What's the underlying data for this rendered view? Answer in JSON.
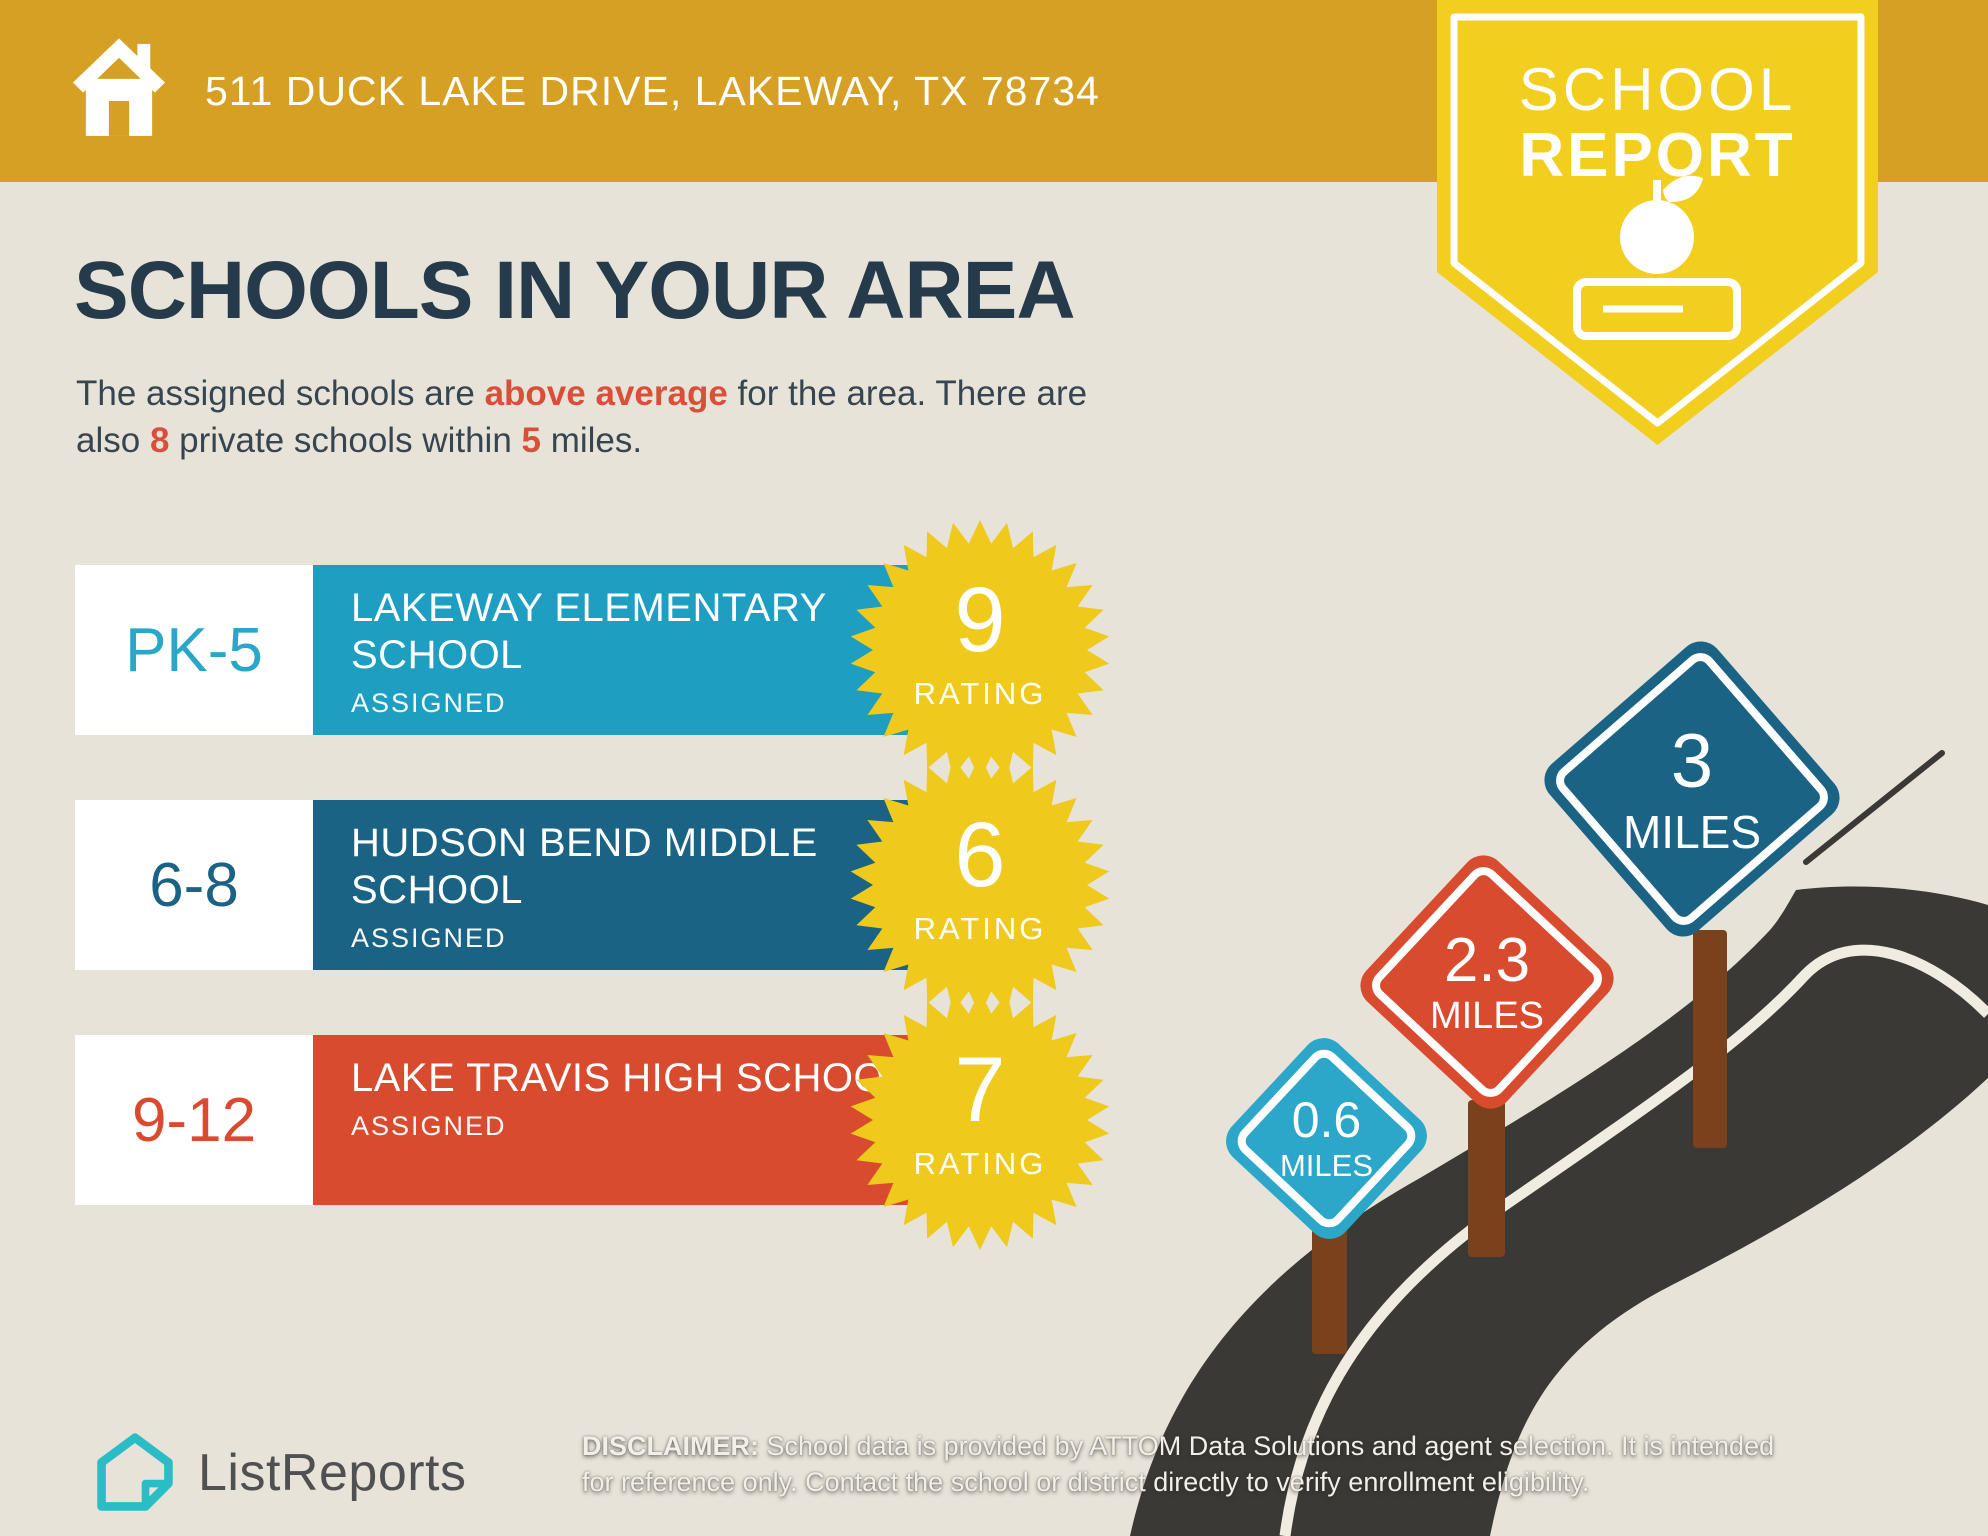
{
  "header": {
    "address": "511 DUCK LAKE DRIVE, LAKEWAY, TX 78734",
    "badge": {
      "line1": "SCHOOL",
      "line2": "REPORT"
    }
  },
  "main": {
    "title": "SCHOOLS IN YOUR AREA",
    "intro": {
      "l1a": "The assigned schools are ",
      "l1b": "above average",
      "l1c": " for the area. There are",
      "l2a": "also ",
      "l2b": "8",
      "l2c": " private schools within ",
      "l2d": "5",
      "l2e": " miles."
    }
  },
  "schools": [
    {
      "grades": "PK-5",
      "name": "LAKEWAY ELEMENTARY SCHOOL",
      "status": "ASSIGNED",
      "rating": "9",
      "rating_label": "RATING",
      "color": "#1E9EC1",
      "grade_color": "#29A7C9"
    },
    {
      "grades": "6-8",
      "name": "HUDSON BEND MIDDLE SCHOOL",
      "status": "ASSIGNED",
      "rating": "6",
      "rating_label": "RATING",
      "color": "#1A6385",
      "grade_color": "#1A6385"
    },
    {
      "grades": "9-12",
      "name": "LAKE TRAVIS HIGH SCHOOL",
      "status": "ASSIGNED",
      "rating": "7",
      "rating_label": "RATING",
      "color": "#D84B2F",
      "grade_color": "#D84B2F"
    }
  ],
  "signs": [
    {
      "distance": "0.6",
      "unit": "MILES",
      "color": "#2CA7C9"
    },
    {
      "distance": "2.3",
      "unit": "MILES",
      "color": "#D84B2F"
    },
    {
      "distance": "3",
      "unit": "MILES",
      "color": "#1A6385"
    }
  ],
  "footer": {
    "brand": "ListReports",
    "disclaimer_label": "DISCLAIMER:",
    "disclaimer_line1": " School data is provided by ATTOM Data Solutions and agent selection. It is intended",
    "disclaimer_line2": "for reference only. Contact the school or district directly to verify enrollment eligibility."
  },
  "colors": {
    "background_beige": "#E8E3D9",
    "header_gold": "#D5A023",
    "badge_yellow": "#F2CE1F",
    "burst_yellow": "#EFC91C",
    "accent_red": "#D8503A",
    "title_navy": "#253B4B",
    "road_charcoal": "#3B3935",
    "road_line_cream": "#F1ECE1",
    "post_brown": "#7A421C",
    "logo_teal": "#2BBDC5"
  }
}
